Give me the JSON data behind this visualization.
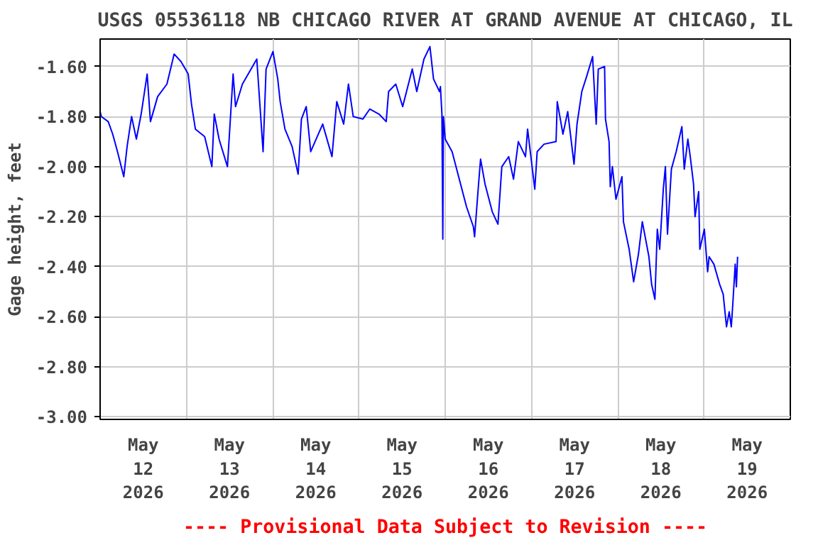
{
  "chart_data": {
    "type": "line",
    "title": "USGS 05536118 NB CHICAGO RIVER AT GRAND AVENUE AT CHICAGO, IL",
    "ylabel": "Gage height, feet",
    "annotations": [
      "---- Provisional Data Subject to Revision ----"
    ],
    "xlim": [
      "2026-05-12T00:00",
      "2026-05-20T00:00"
    ],
    "xticks": [
      {
        "value": "2026-05-12T00:00",
        "label": null
      },
      {
        "value": "2026-05-12T12:00",
        "label": "May\n12\n2026"
      },
      {
        "value": "2026-05-13T00:00",
        "label": null
      },
      {
        "value": "2026-05-13T12:00",
        "label": "May\n13\n2026"
      },
      {
        "value": "2026-05-14T00:00",
        "label": null
      },
      {
        "value": "2026-05-14T12:00",
        "label": "May\n14\n2026"
      },
      {
        "value": "2026-05-15T00:00",
        "label": null
      },
      {
        "value": "2026-05-15T12:00",
        "label": "May\n15\n2026"
      },
      {
        "value": "2026-05-16T00:00",
        "label": null
      },
      {
        "value": "2026-05-16T12:00",
        "label": "May\n16\n2026"
      },
      {
        "value": "2026-05-17T00:00",
        "label": null
      },
      {
        "value": "2026-05-17T12:00",
        "label": "May\n17\n2026"
      },
      {
        "value": "2026-05-18T00:00",
        "label": null
      },
      {
        "value": "2026-05-18T12:00",
        "label": "May\n18\n2026"
      },
      {
        "value": "2026-05-19T00:00",
        "label": null
      },
      {
        "value": "2026-05-19T12:00",
        "label": "May\n19\n2026"
      },
      {
        "value": "2026-05-20T00:00",
        "label": null
      }
    ],
    "ylim": [
      -3.01,
      -1.49
    ],
    "yticks": [
      {
        "value": -3.0,
        "label": "-3.00"
      },
      {
        "value": -2.8,
        "label": "-2.80"
      },
      {
        "value": -2.6,
        "label": "-2.60"
      },
      {
        "value": -2.4,
        "label": "-2.40"
      },
      {
        "value": -2.2,
        "label": "-2.20"
      },
      {
        "value": -2.0,
        "label": "-2.00"
      },
      {
        "value": -1.8,
        "label": "-1.80"
      },
      {
        "value": -1.6,
        "label": "-1.60"
      }
    ],
    "grid": true,
    "marker": "none",
    "line_style": "solid",
    "series": [
      {
        "color": "#0000ff",
        "x": [
          "2026-05-12T00:00",
          "2026-05-12T00:20",
          "2026-05-12T02:15",
          "2026-05-12T03:30",
          "2026-05-12T04:50",
          "2026-05-12T06:35",
          "2026-05-12T07:30",
          "2026-05-12T08:45",
          "2026-05-12T10:05",
          "2026-05-12T11:25",
          "2026-05-12T13:05",
          "2026-05-12T14:00",
          "2026-05-12T16:00",
          "2026-05-12T18:35",
          "2026-05-12T20:35",
          "2026-05-12T22:30",
          "2026-05-13T00:30",
          "2026-05-13T01:25",
          "2026-05-13T02:30",
          "2026-05-13T05:05",
          "2026-05-13T07:05",
          "2026-05-13T07:45",
          "2026-05-13T09:05",
          "2026-05-13T11:25",
          "2026-05-13T13:00",
          "2026-05-13T13:40",
          "2026-05-13T15:35",
          "2026-05-13T19:35",
          "2026-05-13T21:20",
          "2026-05-13T22:10",
          "2026-05-14T00:05",
          "2026-05-14T01:25",
          "2026-05-14T02:05",
          "2026-05-14T03:25",
          "2026-05-14T05:25",
          "2026-05-14T07:05",
          "2026-05-14T08:00",
          "2026-05-14T09:20",
          "2026-05-14T10:35",
          "2026-05-14T13:55",
          "2026-05-14T16:30",
          "2026-05-14T17:50",
          "2026-05-14T19:45",
          "2026-05-14T21:05",
          "2026-05-14T22:25",
          "2026-05-15T01:05",
          "2026-05-15T03:00",
          "2026-05-15T05:35",
          "2026-05-15T07:35",
          "2026-05-15T08:15",
          "2026-05-15T10:15",
          "2026-05-15T12:10",
          "2026-05-15T14:50",
          "2026-05-15T16:05",
          "2026-05-15T18:05",
          "2026-05-15T19:45",
          "2026-05-15T20:45",
          "2026-05-15T22:25",
          "2026-05-15T22:40",
          "2026-05-15T23:05",
          "2026-05-15T23:20",
          "2026-05-15T23:30",
          "2026-05-16T00:00",
          "2026-05-16T01:55",
          "2026-05-16T03:55",
          "2026-05-16T05:55",
          "2026-05-16T07:50",
          "2026-05-16T08:10",
          "2026-05-16T09:10",
          "2026-05-16T09:50",
          "2026-05-16T11:05",
          "2026-05-16T13:05",
          "2026-05-16T14:40",
          "2026-05-16T15:45",
          "2026-05-16T17:40",
          "2026-05-16T19:00",
          "2026-05-16T20:20",
          "2026-05-16T22:20",
          "2026-05-16T22:55",
          "2026-05-17T00:55",
          "2026-05-17T01:35",
          "2026-05-17T03:30",
          "2026-05-17T06:50",
          "2026-05-17T07:10",
          "2026-05-17T08:45",
          "2026-05-17T10:05",
          "2026-05-17T11:50",
          "2026-05-17T12:40",
          "2026-05-17T14:00",
          "2026-05-17T15:20",
          "2026-05-17T17:00",
          "2026-05-17T18:00",
          "2026-05-17T18:35",
          "2026-05-17T20:20",
          "2026-05-17T20:35",
          "2026-05-17T21:35",
          "2026-05-17T21:55",
          "2026-05-17T22:30",
          "2026-05-17T23:30",
          "2026-05-18T01:10",
          "2026-05-18T01:35",
          "2026-05-18T03:10",
          "2026-05-18T04:25",
          "2026-05-18T05:45",
          "2026-05-18T06:50",
          "2026-05-18T08:40",
          "2026-05-18T09:25",
          "2026-05-18T10:20",
          "2026-05-18T11:00",
          "2026-05-18T11:40",
          "2026-05-18T12:40",
          "2026-05-18T13:15",
          "2026-05-18T13:50",
          "2026-05-18T14:55",
          "2026-05-18T16:15",
          "2026-05-18T17:50",
          "2026-05-18T18:30",
          "2026-05-18T19:30",
          "2026-05-18T20:10",
          "2026-05-18T21:05",
          "2026-05-18T21:30",
          "2026-05-18T22:30",
          "2026-05-18T22:50",
          "2026-05-19T00:05",
          "2026-05-19T01:00",
          "2026-05-19T01:25",
          "2026-05-19T02:45",
          "2026-05-19T04:20",
          "2026-05-19T05:20",
          "2026-05-19T06:15",
          "2026-05-19T07:00",
          "2026-05-19T07:35",
          "2026-05-19T08:00",
          "2026-05-19T08:40",
          "2026-05-19T09:00",
          "2026-05-19T09:20"
        ],
        "values": [
          -1.78,
          -1.8,
          -1.82,
          -1.87,
          -1.94,
          -2.04,
          -1.92,
          -1.8,
          -1.89,
          -1.79,
          -1.63,
          -1.82,
          -1.72,
          -1.67,
          -1.55,
          -1.58,
          -1.63,
          -1.75,
          -1.85,
          -1.88,
          -2.0,
          -1.79,
          -1.89,
          -2.0,
          -1.63,
          -1.76,
          -1.67,
          -1.57,
          -1.94,
          -1.61,
          -1.54,
          -1.65,
          -1.74,
          -1.85,
          -1.92,
          -2.03,
          -1.81,
          -1.76,
          -1.94,
          -1.83,
          -1.96,
          -1.74,
          -1.83,
          -1.67,
          -1.8,
          -1.81,
          -1.77,
          -1.79,
          -1.82,
          -1.7,
          -1.67,
          -1.76,
          -1.61,
          -1.7,
          -1.57,
          -1.52,
          -1.65,
          -1.7,
          -1.68,
          -1.79,
          -2.29,
          -1.8,
          -1.89,
          -1.94,
          -2.05,
          -2.16,
          -2.24,
          -2.28,
          -2.09,
          -1.97,
          -2.07,
          -2.18,
          -2.23,
          -2.0,
          -1.96,
          -2.05,
          -1.9,
          -1.96,
          -1.85,
          -2.09,
          -1.94,
          -1.91,
          -1.9,
          -1.74,
          -1.87,
          -1.78,
          -1.99,
          -1.83,
          -1.7,
          -1.64,
          -1.56,
          -1.83,
          -1.61,
          -1.6,
          -1.81,
          -1.9,
          -2.08,
          -2.0,
          -2.13,
          -2.04,
          -2.22,
          -2.33,
          -2.46,
          -2.35,
          -2.22,
          -2.36,
          -2.47,
          -2.53,
          -2.25,
          -2.33,
          -2.09,
          -2.0,
          -2.27,
          -2.01,
          -1.94,
          -1.84,
          -2.01,
          -1.89,
          -1.96,
          -2.07,
          -2.2,
          -2.1,
          -2.33,
          -2.25,
          -2.42,
          -2.36,
          -2.39,
          -2.47,
          -2.51,
          -2.64,
          -2.58,
          -2.64,
          -2.55,
          -2.39,
          -2.48,
          -2.36
        ]
      }
    ]
  }
}
